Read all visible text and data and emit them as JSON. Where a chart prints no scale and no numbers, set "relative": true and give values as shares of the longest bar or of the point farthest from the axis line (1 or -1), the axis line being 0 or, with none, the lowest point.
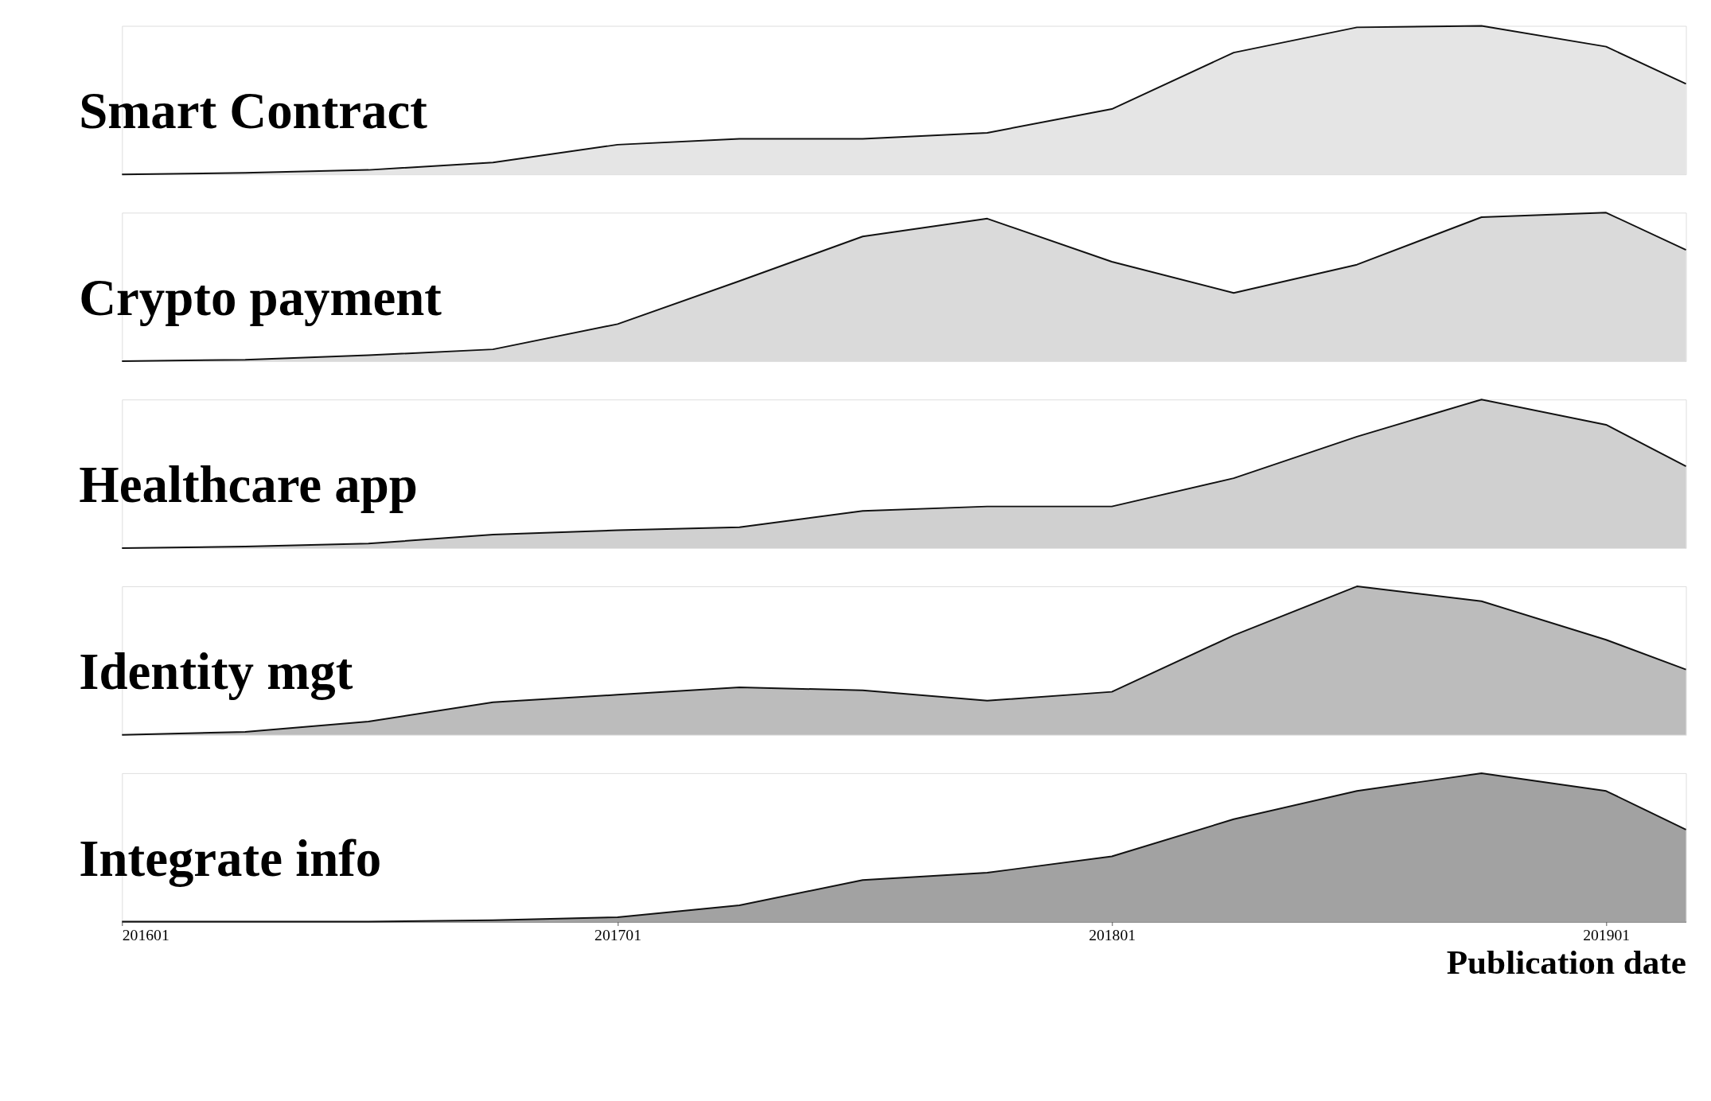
{
  "chart_data": [
    {
      "type": "area",
      "title": "Smart Contract",
      "relative": true,
      "tick_labels": false,
      "grid": false,
      "x": [
        "2016-01",
        "2016-04",
        "2016-07",
        "2016-10",
        "2017-01",
        "2017-04",
        "2017-07",
        "2017-10",
        "2018-01",
        "2018-04",
        "2018-07",
        "2018-10",
        "2019-01",
        "2019-03"
      ],
      "xlim": [
        "2016-01",
        "2019-03"
      ],
      "series": [
        {
          "color": "#dadada",
          "values": [
            0,
            0.01,
            0.03,
            0.08,
            0.2,
            0.24,
            0.24,
            0.28,
            0.44,
            0.82,
            0.99,
            1,
            0.86,
            0.61
          ]
        }
      ]
    },
    {
      "type": "area",
      "title": "Crypto payment",
      "relative": true,
      "tick_labels": false,
      "grid": false,
      "x": [
        "2016-01",
        "2016-04",
        "2016-07",
        "2016-10",
        "2017-01",
        "2017-04",
        "2017-07",
        "2017-10",
        "2018-01",
        "2018-04",
        "2018-07",
        "2018-10",
        "2019-01",
        "2019-03"
      ],
      "xlim": [
        "2016-01",
        "2019-03"
      ],
      "series": [
        {
          "color": "#cbcbcb",
          "values": [
            0,
            0.01,
            0.04,
            0.08,
            0.25,
            0.54,
            0.84,
            0.96,
            0.67,
            0.46,
            0.65,
            0.97,
            1,
            0.75
          ]
        }
      ]
    },
    {
      "type": "area",
      "title": "Healthcare app",
      "relative": true,
      "tick_labels": false,
      "grid": false,
      "x": [
        "2016-01",
        "2016-04",
        "2016-07",
        "2016-10",
        "2017-01",
        "2017-04",
        "2017-07",
        "2017-10",
        "2018-01",
        "2018-04",
        "2018-07",
        "2018-10",
        "2019-01",
        "2019-03"
      ],
      "xlim": [
        "2016-01",
        "2019-03"
      ],
      "series": [
        {
          "color": "#bcbcbc",
          "values": [
            0,
            0.01,
            0.03,
            0.09,
            0.12,
            0.14,
            0.25,
            0.28,
            0.28,
            0.47,
            0.75,
            1,
            0.83,
            0.55
          ]
        }
      ]
    },
    {
      "type": "area",
      "title": "Identity mgt",
      "relative": true,
      "tick_labels": false,
      "grid": false,
      "x": [
        "2016-01",
        "2016-04",
        "2016-07",
        "2016-10",
        "2017-01",
        "2017-04",
        "2017-07",
        "2017-10",
        "2018-01",
        "2018-04",
        "2018-07",
        "2018-10",
        "2019-01",
        "2019-03"
      ],
      "xlim": [
        "2016-01",
        "2019-03"
      ],
      "series": [
        {
          "color": "#a0a0a0",
          "values": [
            0,
            0.02,
            0.09,
            0.22,
            0.27,
            0.32,
            0.3,
            0.23,
            0.29,
            0.67,
            1,
            0.9,
            0.64,
            0.44
          ]
        }
      ]
    },
    {
      "type": "area",
      "title": "Integrate info",
      "relative": true,
      "grid": false,
      "xlabel": "Publication date",
      "x": [
        "2016-01",
        "2016-04",
        "2016-07",
        "2016-10",
        "2017-01",
        "2017-04",
        "2017-07",
        "2017-10",
        "2018-01",
        "2018-04",
        "2018-07",
        "2018-10",
        "2019-01",
        "2019-03"
      ],
      "xlim": [
        "2016-01",
        "2019-03"
      ],
      "xticks": [
        {
          "value": "2016-01",
          "label": "201601"
        },
        {
          "value": "2017-01",
          "label": "201701"
        },
        {
          "value": "2018-01",
          "label": "201801"
        },
        {
          "value": "2019-01",
          "label": "201901"
        }
      ],
      "series": [
        {
          "color": "#7a7a7a",
          "values": [
            0,
            0,
            0,
            0.01,
            0.03,
            0.11,
            0.28,
            0.33,
            0.44,
            0.69,
            0.88,
            1,
            0.88,
            0.62
          ]
        }
      ]
    }
  ]
}
